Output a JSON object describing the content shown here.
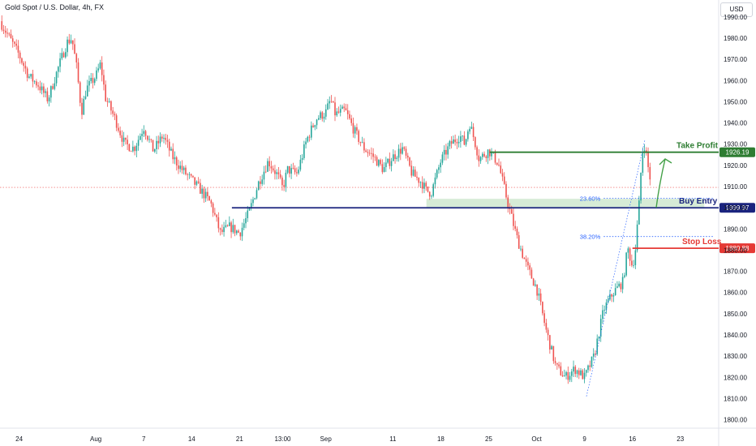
{
  "symbol_title": "Gold Spot / U.S. Dollar, 4h, FX",
  "currency_button": "USD",
  "colors": {
    "up": "#26a69a",
    "down": "#ef5350",
    "take_profit": "#2e7d32",
    "buy_entry": "#1a237e",
    "stop_loss": "#e53935",
    "fib": "#2962ff",
    "zone": "#cfe8cf",
    "arrow": "#43a047"
  },
  "chart_data": {
    "type": "candlestick",
    "title": "Gold Spot / U.S. Dollar, 4h, FX",
    "ylim": [
      1796,
      1998
    ],
    "y_ticks": [
      1800,
      1810,
      1820,
      1830,
      1840,
      1850,
      1860,
      1870,
      1880,
      1890,
      1900,
      1910,
      1920,
      1930,
      1940,
      1950,
      1960,
      1970,
      1980,
      1990
    ],
    "x_ticks": [
      {
        "label": "24",
        "t": 0
      },
      {
        "label": "Aug",
        "t": 8
      },
      {
        "label": "7",
        "t": 13
      },
      {
        "label": "14",
        "t": 18
      },
      {
        "label": "21",
        "t": 23
      },
      {
        "label": "13:00",
        "t": 27.5
      },
      {
        "label": "Sep",
        "t": 32
      },
      {
        "label": "11",
        "t": 39
      },
      {
        "label": "18",
        "t": 44
      },
      {
        "label": "25",
        "t": 49
      },
      {
        "label": "Oct",
        "t": 54
      },
      {
        "label": "9",
        "t": 59
      },
      {
        "label": "16",
        "t": 64
      },
      {
        "label": "23",
        "t": 69
      }
    ],
    "xlim": [
      -2,
      73
    ],
    "path": [
      [
        -2,
        1988
      ],
      [
        0,
        1972
      ],
      [
        1,
        1962
      ],
      [
        2,
        1958
      ],
      [
        3,
        1951
      ],
      [
        4,
        1965
      ],
      [
        5,
        1978
      ],
      [
        5.5,
        1980
      ],
      [
        6,
        1966
      ],
      [
        6.5,
        1945
      ],
      [
        7,
        1956
      ],
      [
        8,
        1962
      ],
      [
        8.5,
        1968
      ],
      [
        9,
        1952
      ],
      [
        10,
        1942
      ],
      [
        11,
        1930
      ],
      [
        12,
        1928
      ],
      [
        13,
        1938
      ],
      [
        14,
        1927
      ],
      [
        15,
        1934
      ],
      [
        16,
        1924
      ],
      [
        17,
        1918
      ],
      [
        18,
        1913
      ],
      [
        19,
        1908
      ],
      [
        20,
        1902
      ],
      [
        21,
        1888
      ],
      [
        22,
        1891
      ],
      [
        23,
        1888
      ],
      [
        24,
        1898
      ],
      [
        25,
        1912
      ],
      [
        26,
        1922
      ],
      [
        27,
        1915
      ],
      [
        27.5,
        1909
      ],
      [
        28,
        1918
      ],
      [
        29,
        1916
      ],
      [
        30,
        1932
      ],
      [
        31,
        1942
      ],
      [
        32,
        1945
      ],
      [
        32.5,
        1951
      ],
      [
        33,
        1944
      ],
      [
        34,
        1946
      ],
      [
        35,
        1936
      ],
      [
        36,
        1928
      ],
      [
        37,
        1924
      ],
      [
        38,
        1918
      ],
      [
        39,
        1924
      ],
      [
        40,
        1928
      ],
      [
        41,
        1916
      ],
      [
        42,
        1912
      ],
      [
        42.5,
        1908
      ],
      [
        43,
        1907
      ],
      [
        44,
        1922
      ],
      [
        45,
        1930
      ],
      [
        46,
        1934
      ],
      [
        46.5,
        1930
      ],
      [
        47,
        1940
      ],
      [
        47.5,
        1932
      ],
      [
        48,
        1923
      ],
      [
        49,
        1927
      ],
      [
        50,
        1921
      ],
      [
        51,
        1902
      ],
      [
        52,
        1885
      ],
      [
        53,
        1872
      ],
      [
        54,
        1862
      ],
      [
        55,
        1842
      ],
      [
        56,
        1825
      ],
      [
        57,
        1820
      ],
      [
        58,
        1824
      ],
      [
        59,
        1820
      ],
      [
        60,
        1830
      ],
      [
        61,
        1852
      ],
      [
        62,
        1860
      ],
      [
        63,
        1865
      ],
      [
        63.5,
        1881
      ],
      [
        64,
        1872
      ],
      [
        64.3,
        1880
      ],
      [
        64.7,
        1902
      ],
      [
        65,
        1926
      ],
      [
        65.3,
        1930
      ],
      [
        65.6,
        1920
      ],
      [
        66,
        1910
      ]
    ],
    "levels": {
      "take_profit": {
        "label": "Take Profit",
        "value": 1926.19,
        "value_label": "1926.19"
      },
      "buy_entry": {
        "label": "Buy Entry",
        "value": 1899.97,
        "value_label": "1899.97"
      },
      "stop_loss": {
        "label": "Stop Loss",
        "value": 1880.88,
        "value_label": "1880.88"
      }
    },
    "fib": [
      {
        "label": "23.60%",
        "value": 1904.5
      },
      {
        "label": "38.20%",
        "value": 1886.4
      }
    ]
  }
}
